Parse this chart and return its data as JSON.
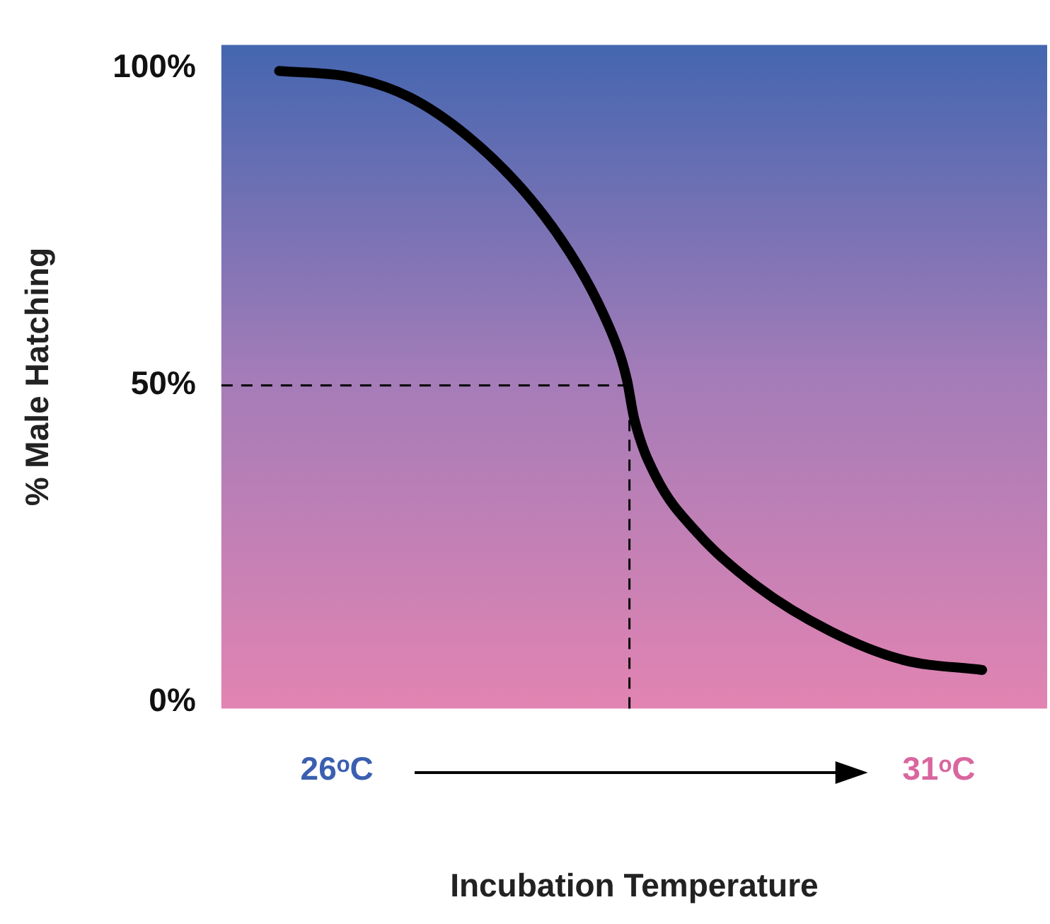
{
  "chart_data": {
    "type": "line",
    "xlabel": "Incubation Temperature",
    "ylabel": "% Male Hatching",
    "x": [
      25.52,
      26.12,
      26.6,
      27.08,
      27.57,
      27.93,
      28.17,
      28.35,
      28.41,
      28.47,
      28.65,
      29.01,
      29.49,
      30.1,
      30.7,
      31.36
    ],
    "series": [
      {
        "color": "#000000",
        "values": [
          99.6,
          98.6,
          95.5,
          89.4,
          80.3,
          71.1,
          63,
          54.9,
          50.8,
          44.7,
          35.6,
          26.4,
          18.3,
          11.2,
          6.7,
          5.1
        ]
      }
    ],
    "xlim": [
      25.04,
      31.9
    ],
    "xticks": [
      {
        "value": 26,
        "label": "26ᵒC"
      },
      {
        "value": 31,
        "label": "31ᵒC"
      }
    ],
    "ylim": [
      -1,
      103.7
    ],
    "yticks": [
      {
        "value": 0,
        "label": "0%"
      },
      {
        "value": 50,
        "label": "50%"
      },
      {
        "value": 100,
        "label": "100%"
      }
    ],
    "ref_lines": [
      {
        "axis": "y",
        "value": 50,
        "line_style": "dashed"
      },
      {
        "axis": "x",
        "value": 28.43,
        "line_style": "dashed"
      }
    ],
    "grid": false,
    "legend": false,
    "marker": "none",
    "line_style": "solid"
  }
}
